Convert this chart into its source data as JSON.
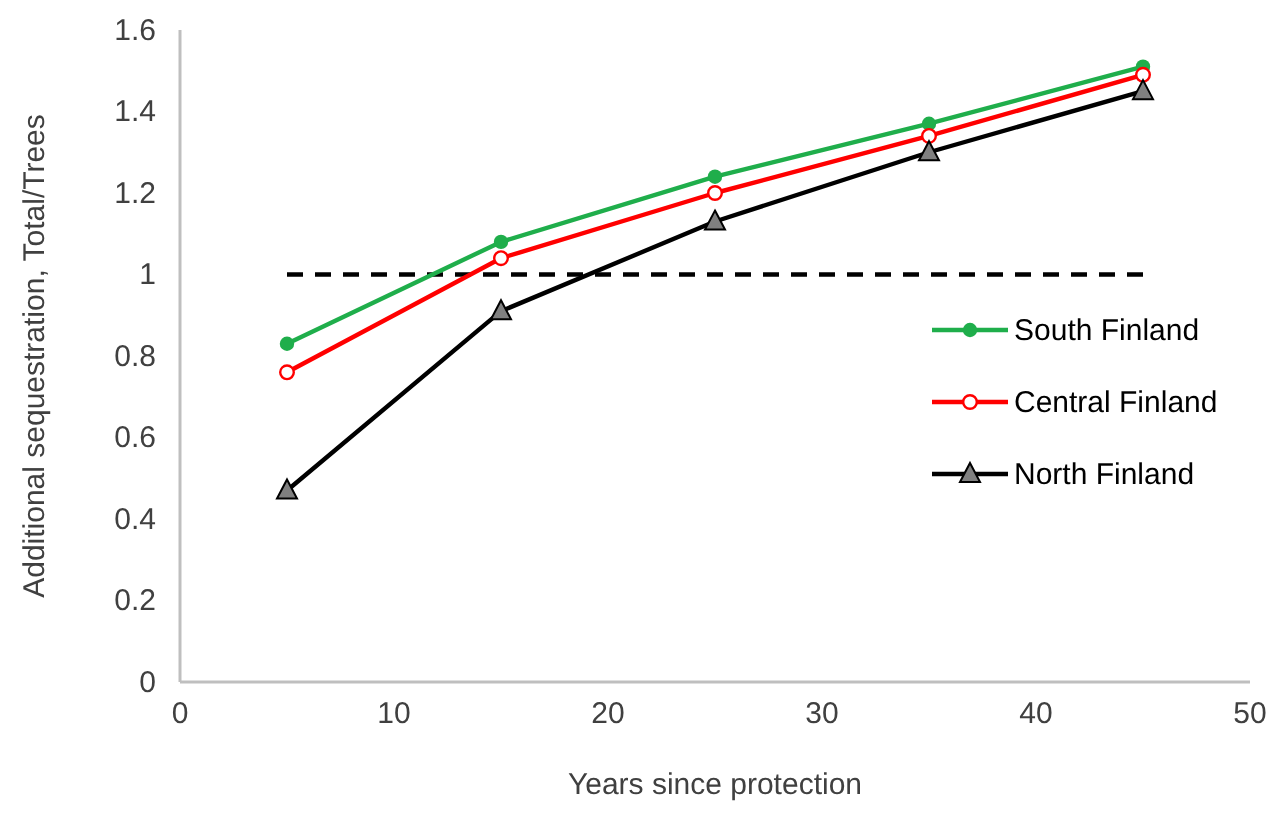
{
  "chart_data": {
    "type": "line",
    "xlabel": "Years since protection",
    "ylabel": "Additional sequestration, Total/Trees",
    "x": [
      5,
      15,
      25,
      35,
      45
    ],
    "xlim": [
      0,
      50
    ],
    "xticks": [
      0,
      10,
      20,
      30,
      40,
      50
    ],
    "ylim": [
      0,
      1.6
    ],
    "yticks": [
      0,
      {
        "value": 0.2,
        "label": "0.2"
      },
      {
        "value": 0.4,
        "label": "0.4"
      },
      {
        "value": 0.6,
        "label": "0.6"
      },
      {
        "value": 0.8,
        "label": "0.8"
      },
      1,
      {
        "value": 1.2,
        "label": "1.2"
      },
      {
        "value": 1.4,
        "label": "1.4"
      },
      {
        "value": 1.6,
        "label": "1.6"
      }
    ],
    "grid": false,
    "legend": "right",
    "series": [
      {
        "x": [
          5,
          45
        ],
        "values": [
          1,
          1
        ],
        "color": "#000000",
        "marker": "none",
        "line_style": "dashed"
      },
      {
        "name": "South Finland",
        "color": "#1fae4b",
        "marker": "circle",
        "values": [
          0.83,
          1.08,
          1.24,
          1.37,
          1.51
        ]
      },
      {
        "name": "Central Finland",
        "color": "#ff0000",
        "marker": "open circle",
        "values": [
          0.76,
          1.04,
          1.2,
          1.34,
          1.49
        ]
      },
      {
        "name": "North Finland",
        "color": "#000000",
        "marker": "triangle",
        "values": [
          0.47,
          0.91,
          1.13,
          1.3,
          1.45
        ]
      }
    ]
  }
}
